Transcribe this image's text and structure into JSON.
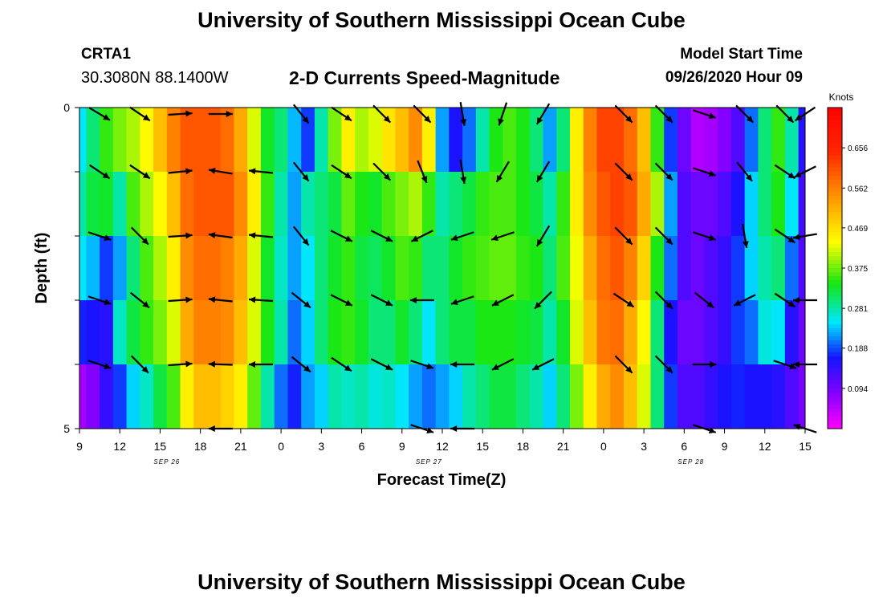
{
  "header": {
    "title": "University of Southern Mississippi Ocean Cube",
    "station": "CRTA1",
    "location": "30.3080N 88.1400W",
    "plot_title": "2-D Currents Speed-Magnitude",
    "start_label": "Model Start Time",
    "start_value": "09/26/2020 Hour 09"
  },
  "footer": {
    "title": "University of Southern Mississippi Ocean Cube"
  },
  "chart_data": {
    "type": "heatmap",
    "title": "2-D Currents Speed-Magnitude",
    "xlabel": "Forecast Time(Z)",
    "ylabel": "Depth (ft)",
    "x_ticks": [
      "9",
      "12",
      "15",
      "18",
      "21",
      "0",
      "3",
      "6",
      "9",
      "12",
      "15",
      "18",
      "21",
      "0",
      "3",
      "6",
      "9",
      "12",
      "15"
    ],
    "date_labels": [
      {
        "label": "SEP 26",
        "hour": 15.5
      },
      {
        "label": "SEP 27",
        "hour": 35
      },
      {
        "label": "SEP 28",
        "hour": 54.5
      }
    ],
    "xlim": [
      9,
      63
    ],
    "y_ticks": [
      "0",
      "5"
    ],
    "ylim": [
      0,
      5
    ],
    "colorbar": {
      "label": "Knots",
      "ticks": [
        "0.656",
        "0.562",
        "0.469",
        "0.375",
        "0.281",
        "0.188",
        "0.094"
      ],
      "range": [
        0,
        0.75
      ]
    },
    "depths": [
      0,
      1,
      2,
      3,
      4,
      5
    ],
    "speed_profile": [
      {
        "h": 9,
        "v": [
          0.25,
          0.28,
          0.25,
          0.17,
          0.06
        ]
      },
      {
        "h": 10,
        "v": [
          0.3,
          0.32,
          0.23,
          0.16,
          0.08
        ]
      },
      {
        "h": 11,
        "v": [
          0.35,
          0.33,
          0.18,
          0.15,
          0.14
        ]
      },
      {
        "h": 12,
        "v": [
          0.38,
          0.28,
          0.22,
          0.27,
          0.18
        ]
      },
      {
        "h": 13,
        "v": [
          0.4,
          0.36,
          0.3,
          0.32,
          0.24
        ]
      },
      {
        "h": 14,
        "v": [
          0.44,
          0.4,
          0.36,
          0.35,
          0.27
        ]
      },
      {
        "h": 15,
        "v": [
          0.5,
          0.44,
          0.4,
          0.38,
          0.32
        ]
      },
      {
        "h": 16,
        "v": [
          0.56,
          0.5,
          0.45,
          0.42,
          0.36
        ]
      },
      {
        "h": 17,
        "v": [
          0.6,
          0.58,
          0.55,
          0.52,
          0.45
        ]
      },
      {
        "h": 18,
        "v": [
          0.6,
          0.6,
          0.58,
          0.56,
          0.5
        ]
      },
      {
        "h": 19,
        "v": [
          0.6,
          0.6,
          0.58,
          0.56,
          0.5
        ]
      },
      {
        "h": 20,
        "v": [
          0.58,
          0.6,
          0.56,
          0.55,
          0.48
        ]
      },
      {
        "h": 21,
        "v": [
          0.52,
          0.55,
          0.52,
          0.5,
          0.45
        ]
      },
      {
        "h": 22,
        "v": [
          0.42,
          0.45,
          0.42,
          0.42,
          0.37
        ]
      },
      {
        "h": 23,
        "v": [
          0.33,
          0.35,
          0.33,
          0.34,
          0.28
        ]
      },
      {
        "h": 24,
        "v": [
          0.3,
          0.28,
          0.27,
          0.28,
          0.2
        ]
      },
      {
        "h": 25,
        "v": [
          0.23,
          0.22,
          0.22,
          0.2,
          0.17
        ]
      },
      {
        "h": 26,
        "v": [
          0.18,
          0.28,
          0.25,
          0.24,
          0.22
        ]
      },
      {
        "h": 27,
        "v": [
          0.28,
          0.3,
          0.3,
          0.3,
          0.24
        ]
      },
      {
        "h": 28,
        "v": [
          0.38,
          0.32,
          0.33,
          0.34,
          0.28
        ]
      },
      {
        "h": 29,
        "v": [
          0.45,
          0.37,
          0.35,
          0.35,
          0.27
        ]
      },
      {
        "h": 30,
        "v": [
          0.4,
          0.34,
          0.32,
          0.33,
          0.28
        ]
      },
      {
        "h": 31,
        "v": [
          0.42,
          0.33,
          0.31,
          0.3,
          0.26
        ]
      },
      {
        "h": 32,
        "v": [
          0.46,
          0.36,
          0.33,
          0.3,
          0.27
        ]
      },
      {
        "h": 33,
        "v": [
          0.5,
          0.38,
          0.36,
          0.33,
          0.25
        ]
      },
      {
        "h": 34,
        "v": [
          0.55,
          0.4,
          0.35,
          0.3,
          0.22
        ]
      },
      {
        "h": 35,
        "v": [
          0.45,
          0.35,
          0.3,
          0.25,
          0.2
        ]
      },
      {
        "h": 36,
        "v": [
          0.22,
          0.28,
          0.3,
          0.3,
          0.22
        ]
      },
      {
        "h": 37,
        "v": [
          0.16,
          0.3,
          0.33,
          0.32,
          0.24
        ]
      },
      {
        "h": 38,
        "v": [
          0.2,
          0.32,
          0.35,
          0.32,
          0.28
        ]
      },
      {
        "h": 39,
        "v": [
          0.28,
          0.35,
          0.36,
          0.34,
          0.3
        ]
      },
      {
        "h": 40,
        "v": [
          0.34,
          0.36,
          0.37,
          0.34,
          0.32
        ]
      },
      {
        "h": 41,
        "v": [
          0.36,
          0.36,
          0.37,
          0.34,
          0.32
        ]
      },
      {
        "h": 42,
        "v": [
          0.34,
          0.34,
          0.35,
          0.33,
          0.3
        ]
      },
      {
        "h": 43,
        "v": [
          0.3,
          0.32,
          0.34,
          0.32,
          0.28
        ]
      },
      {
        "h": 44,
        "v": [
          0.22,
          0.28,
          0.3,
          0.28,
          0.24
        ]
      },
      {
        "h": 45,
        "v": [
          0.3,
          0.35,
          0.36,
          0.33,
          0.3
        ]
      },
      {
        "h": 46,
        "v": [
          0.45,
          0.45,
          0.43,
          0.42,
          0.38
        ]
      },
      {
        "h": 47,
        "v": [
          0.56,
          0.55,
          0.52,
          0.5,
          0.45
        ]
      },
      {
        "h": 48,
        "v": [
          0.62,
          0.6,
          0.58,
          0.57,
          0.52
        ]
      },
      {
        "h": 49,
        "v": [
          0.62,
          0.62,
          0.6,
          0.58,
          0.55
        ]
      },
      {
        "h": 50,
        "v": [
          0.58,
          0.6,
          0.56,
          0.52,
          0.5
        ]
      },
      {
        "h": 51,
        "v": [
          0.5,
          0.52,
          0.48,
          0.44,
          0.42
        ]
      },
      {
        "h": 52,
        "v": [
          0.35,
          0.4,
          0.34,
          0.3,
          0.3
        ]
      },
      {
        "h": 53,
        "v": [
          0.18,
          0.22,
          0.2,
          0.16,
          0.18
        ]
      },
      {
        "h": 54,
        "v": [
          0.1,
          0.12,
          0.12,
          0.1,
          0.12
        ]
      },
      {
        "h": 55,
        "v": [
          0.05,
          0.1,
          0.1,
          0.1,
          0.12
        ]
      },
      {
        "h": 56,
        "v": [
          0.06,
          0.1,
          0.12,
          0.12,
          0.14
        ]
      },
      {
        "h": 57,
        "v": [
          0.08,
          0.12,
          0.14,
          0.14,
          0.16
        ]
      },
      {
        "h": 58,
        "v": [
          0.12,
          0.16,
          0.18,
          0.18,
          0.17
        ]
      },
      {
        "h": 59,
        "v": [
          0.2,
          0.24,
          0.24,
          0.2,
          0.16
        ]
      },
      {
        "h": 60,
        "v": [
          0.3,
          0.3,
          0.28,
          0.26,
          0.16
        ]
      },
      {
        "h": 61,
        "v": [
          0.35,
          0.34,
          0.3,
          0.25,
          0.15
        ]
      },
      {
        "h": 62,
        "v": [
          0.28,
          0.25,
          0.2,
          0.15,
          0.12
        ]
      },
      {
        "h": 63,
        "v": [
          0.15,
          0.13,
          0.12,
          0.1,
          0.09
        ]
      }
    ],
    "vector_rows_depth": [
      0,
      1,
      2,
      3,
      4,
      5
    ],
    "vectors": [
      {
        "h": 10.5,
        "dir": [
          [
            2.5,
            1.5
          ],
          [
            3,
            2
          ],
          [
            3,
            1
          ],
          [
            3,
            1
          ],
          [
            3,
            1
          ],
          null
        ]
      },
      {
        "h": 13.5,
        "dir": [
          [
            3,
            2
          ],
          [
            3,
            2
          ],
          [
            2,
            2
          ],
          [
            2.5,
            2
          ],
          [
            2,
            2
          ],
          null
        ]
      },
      {
        "h": 16.5,
        "dir": [
          [
            3,
            -0.2
          ],
          [
            3,
            -0.3
          ],
          [
            3,
            -0.2
          ],
          [
            3,
            -0.2
          ],
          [
            3,
            -0.2
          ],
          null
        ]
      },
      {
        "h": 19.5,
        "dir": [
          [
            3,
            0
          ],
          [
            -3,
            -0.5
          ],
          [
            -3,
            -0.4
          ],
          [
            -3,
            -0.3
          ],
          [
            -3,
            -0.1
          ],
          [
            -3,
            0
          ]
        ]
      },
      {
        "h": 22.5,
        "dir": [
          null,
          [
            -3,
            -0.3
          ],
          [
            -3,
            -0.3
          ],
          [
            -3,
            -0.2
          ],
          [
            -3,
            0
          ],
          null
        ]
      },
      {
        "h": 25.5,
        "dir": [
          [
            2,
            2.5
          ],
          [
            2,
            2.5
          ],
          [
            2,
            2.5
          ],
          [
            2.5,
            2
          ],
          [
            2.5,
            2
          ],
          null
        ]
      },
      {
        "h": 28.5,
        "dir": [
          [
            3,
            2
          ],
          [
            3,
            2
          ],
          [
            3,
            1.5
          ],
          [
            3,
            1.5
          ],
          [
            3,
            2
          ],
          null
        ]
      },
      {
        "h": 31.5,
        "dir": [
          [
            2,
            2
          ],
          [
            2,
            2
          ],
          [
            3,
            1.5
          ],
          [
            3,
            1.5
          ],
          [
            3,
            1.5
          ],
          null
        ]
      },
      {
        "h": 34.5,
        "dir": [
          [
            2,
            2
          ],
          [
            1,
            2.5
          ],
          [
            -3,
            1.5
          ],
          [
            -3,
            0
          ],
          [
            3,
            1
          ],
          [
            3,
            1
          ]
        ]
      },
      {
        "h": 37.5,
        "dir": [
          [
            0.5,
            3
          ],
          [
            0.5,
            3
          ],
          [
            -3,
            1
          ],
          [
            -3,
            1
          ],
          [
            -3,
            0
          ],
          [
            -3,
            0
          ]
        ]
      },
      {
        "h": 40.5,
        "dir": [
          [
            -1,
            3
          ],
          [
            -1.5,
            2.5
          ],
          [
            -3,
            1
          ],
          [
            -3,
            1.5
          ],
          [
            -3,
            1.5
          ],
          null
        ]
      },
      {
        "h": 43.5,
        "dir": [
          [
            -1.5,
            2.5
          ],
          [
            -1.5,
            2.5
          ],
          [
            -1.5,
            2.5
          ],
          [
            -2,
            2
          ],
          [
            -3,
            1.5
          ],
          null
        ]
      },
      {
        "h": 49.5,
        "dir": [
          [
            2,
            2
          ],
          [
            2,
            2
          ],
          [
            2,
            2
          ],
          [
            3,
            2
          ],
          [
            2,
            2
          ],
          null
        ]
      },
      {
        "h": 52.5,
        "dir": [
          [
            2,
            2
          ],
          [
            2,
            2
          ],
          [
            2,
            2
          ],
          [
            2,
            2
          ],
          [
            2,
            2
          ],
          null
        ]
      },
      {
        "h": 55.5,
        "dir": [
          [
            3,
            1
          ],
          [
            3,
            1
          ],
          [
            3,
            1
          ],
          [
            2.5,
            2
          ],
          [
            3,
            0
          ],
          [
            3,
            1
          ]
        ]
      },
      {
        "h": 58.5,
        "dir": [
          [
            2,
            2
          ],
          [
            2,
            2.5
          ],
          [
            0.5,
            3
          ],
          [
            -3,
            1.5
          ],
          null,
          null
        ]
      },
      {
        "h": 61.5,
        "dir": [
          [
            2,
            2
          ],
          [
            3,
            2
          ],
          [
            3,
            2
          ],
          [
            3,
            2
          ],
          [
            3,
            1
          ],
          null
        ]
      },
      {
        "h": 63,
        "dir": [
          [
            -3,
            2
          ],
          [
            -3,
            1.5
          ],
          [
            -3,
            0.5
          ],
          [
            -3,
            0
          ],
          [
            -3,
            0
          ],
          [
            -3,
            -1
          ]
        ]
      }
    ]
  }
}
